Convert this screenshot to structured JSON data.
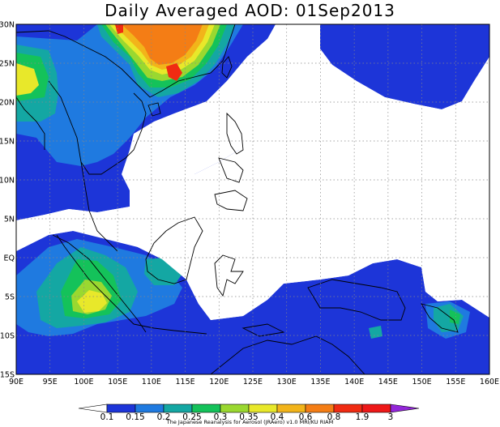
{
  "title": "Daily Averaged AOD: 01Sep2013",
  "credit": "The Japanese Reanalysis for Aerosol (JRAero) v1.0 MRI/KU RIAM",
  "map": {
    "lon_range": [
      90,
      160
    ],
    "lat_range": [
      -15,
      30
    ],
    "lon_ticks": [
      "90E",
      "95E",
      "100E",
      "105E",
      "110E",
      "115E",
      "120E",
      "125E",
      "130E",
      "135E",
      "140E",
      "145E",
      "150E",
      "155E",
      "160E"
    ],
    "lat_ticks": [
      "30N",
      "25N",
      "20N",
      "15N",
      "10N",
      "5N",
      "EQ",
      "5S",
      "10S",
      "15S"
    ],
    "grid": "dotted"
  },
  "colorbar": {
    "levels": [
      "0.1",
      "0.15",
      "0.2",
      "0.25",
      "0.3",
      "0.35",
      "0.4",
      "0.6",
      "0.8",
      "1.9",
      "3"
    ],
    "colors": [
      "#ffffff",
      "#1d35d8",
      "#1f7ae0",
      "#14a7a3",
      "#14c25a",
      "#9ad830",
      "#e8e82a",
      "#f2b41a",
      "#f47d15",
      "#f02b12",
      "#ee1818",
      "#9326d9"
    ]
  },
  "colors": {
    "c015": "#1d35d8",
    "c02": "#1f7ae0",
    "c025": "#14a7a3",
    "c03": "#14c25a",
    "c035": "#9ad830",
    "c04": "#e8e82a",
    "c06": "#f2b41a",
    "c08": "#f47d15",
    "c19": "#f02b12",
    "c3": "#9326d9"
  }
}
